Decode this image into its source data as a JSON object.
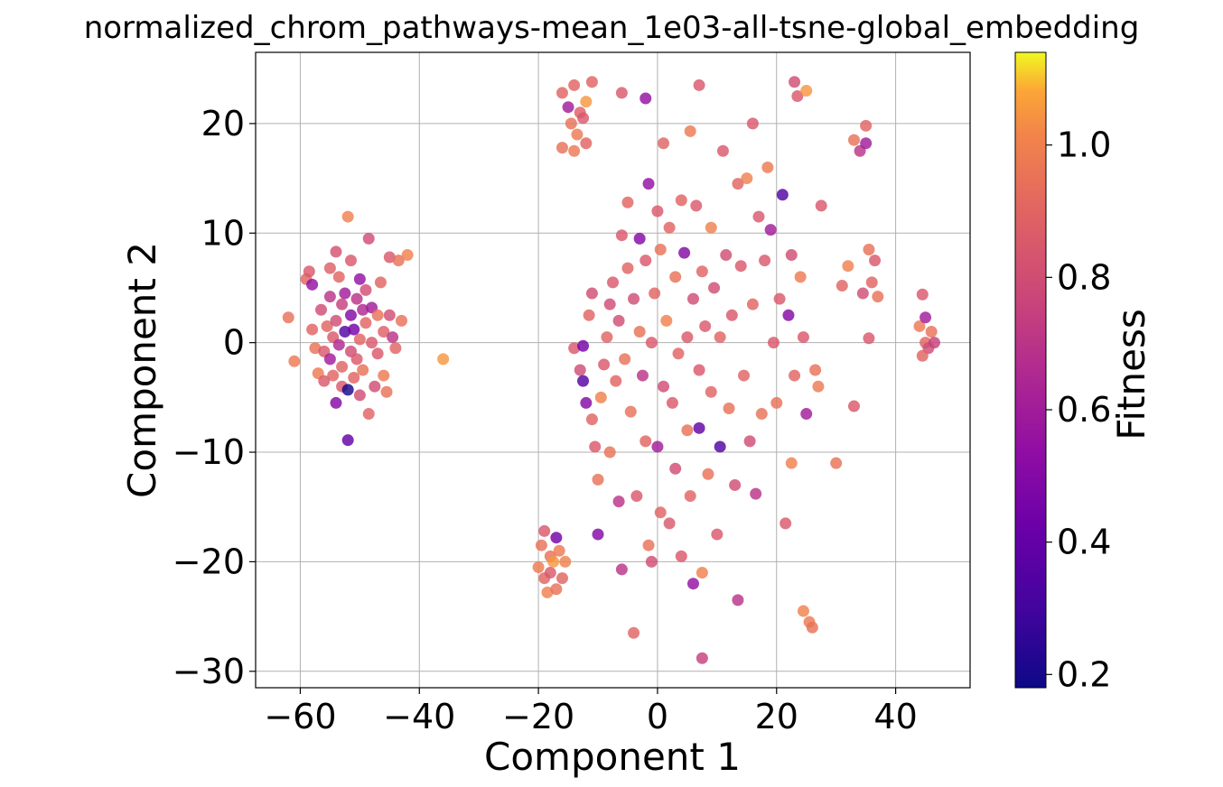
{
  "chart_data": {
    "type": "scatter",
    "title": "normalized_chrom_pathways-mean_1e03-all-tsne-global_embedding",
    "xlabel": "Component 1",
    "ylabel": "Component 2",
    "xlim": [
      -67.5,
      52.5
    ],
    "ylim": [
      -31.5,
      26.5
    ],
    "xticks": [
      -60,
      -40,
      -20,
      0,
      20,
      40
    ],
    "yticks": [
      -30,
      -20,
      -10,
      0,
      10,
      20
    ],
    "xtick_labels": [
      "−60",
      "−40",
      "−20",
      "0",
      "20",
      "40"
    ],
    "ytick_labels": [
      "−30",
      "−20",
      "−10",
      "0",
      "10",
      "20"
    ],
    "grid": true,
    "colorbar": {
      "label": "Fitness",
      "colormap": "plasma",
      "range": [
        0.18,
        1.14
      ],
      "ticks": [
        0.2,
        0.4,
        0.6,
        0.8,
        1.0
      ],
      "tick_labels": [
        "0.2",
        "0.4",
        "0.6",
        "0.8",
        "1.0"
      ]
    },
    "points": [
      [
        -62,
        2.3,
        0.95
      ],
      [
        -61,
        -1.7,
        0.98
      ],
      [
        -59,
        5.8,
        0.9
      ],
      [
        -58.5,
        6.5,
        0.85
      ],
      [
        -58,
        5.3,
        0.55
      ],
      [
        -58,
        1.2,
        0.9
      ],
      [
        -57.5,
        -0.5,
        0.95
      ],
      [
        -57,
        -2.8,
        0.98
      ],
      [
        -56.5,
        3.0,
        0.8
      ],
      [
        -56,
        -0.8,
        0.85
      ],
      [
        -56,
        -3.5,
        0.85
      ],
      [
        -55.5,
        1.5,
        0.9
      ],
      [
        -55,
        6.8,
        0.88
      ],
      [
        -55,
        4.2,
        0.7
      ],
      [
        -55,
        -1.5,
        0.6
      ],
      [
        -54.5,
        -3.0,
        0.9
      ],
      [
        -54.5,
        0.5,
        0.85
      ],
      [
        -54,
        8.3,
        0.82
      ],
      [
        -54,
        2.0,
        0.8
      ],
      [
        -54,
        -5.5,
        0.5
      ],
      [
        -53.5,
        -0.2,
        0.65
      ],
      [
        -53.5,
        6.0,
        0.9
      ],
      [
        -53,
        3.5,
        0.75
      ],
      [
        -53,
        -2.2,
        0.9
      ],
      [
        -53,
        -4.0,
        0.85
      ],
      [
        -52.5,
        1.0,
        0.35
      ],
      [
        -52.5,
        4.5,
        0.6
      ],
      [
        -52,
        11.5,
        1.0
      ],
      [
        -52,
        -4.3,
        0.2
      ],
      [
        -52,
        -8.9,
        0.4
      ],
      [
        -51.5,
        2.5,
        0.5
      ],
      [
        -51.5,
        -0.8,
        0.8
      ],
      [
        -51.5,
        7.5,
        0.85
      ],
      [
        -51,
        1.2,
        0.45
      ],
      [
        -51,
        -3.2,
        0.9
      ],
      [
        -50.5,
        4.0,
        0.7
      ],
      [
        -50.5,
        -1.5,
        0.85
      ],
      [
        -50,
        5.8,
        0.55
      ],
      [
        -50,
        0.3,
        0.9
      ],
      [
        -50,
        -4.8,
        0.8
      ],
      [
        -49.5,
        3.0,
        0.65
      ],
      [
        -49.5,
        -2.5,
        0.95
      ],
      [
        -49,
        4.8,
        0.8
      ],
      [
        -49,
        1.8,
        0.9
      ],
      [
        -48.5,
        -6.5,
        0.9
      ],
      [
        -48.5,
        9.5,
        0.8
      ],
      [
        -48,
        3.2,
        0.6
      ],
      [
        -48,
        0.0,
        0.85
      ],
      [
        -47.5,
        -4.0,
        0.8
      ],
      [
        -47,
        2.5,
        0.95
      ],
      [
        -47,
        -1.0,
        0.85
      ],
      [
        -46.5,
        5.5,
        0.9
      ],
      [
        -46,
        1.0,
        0.88
      ],
      [
        -46,
        -3.0,
        0.98
      ],
      [
        -45.5,
        -4.5,
        0.95
      ],
      [
        -45,
        7.8,
        0.85
      ],
      [
        -45,
        2.5,
        0.8
      ],
      [
        -44.5,
        0.5,
        0.7
      ],
      [
        -44,
        -0.5,
        0.9
      ],
      [
        -43.5,
        7.5,
        0.95
      ],
      [
        -43,
        2.0,
        0.95
      ],
      [
        -42,
        8.0,
        1.0
      ],
      [
        -36,
        -1.5,
        1.05
      ],
      [
        -20,
        -20.5,
        0.98
      ],
      [
        -19.5,
        -18.5,
        0.95
      ],
      [
        -19,
        -21.5,
        0.9
      ],
      [
        -19,
        -17.2,
        0.85
      ],
      [
        -18.5,
        -22.8,
        1.0
      ],
      [
        -18,
        -19.5,
        0.95
      ],
      [
        -18,
        -21.0,
        0.85
      ],
      [
        -17.5,
        -20.0,
        1.05
      ],
      [
        -17,
        -22.5,
        0.95
      ],
      [
        -17,
        -17.8,
        0.45
      ],
      [
        -16.5,
        -19.0,
        0.98
      ],
      [
        -16,
        -21.5,
        0.9
      ],
      [
        -15.5,
        -20.0,
        1.0
      ],
      [
        -16,
        22.8,
        0.9
      ],
      [
        -15,
        21.5,
        0.6
      ],
      [
        -14.5,
        20.0,
        0.95
      ],
      [
        -14,
        23.5,
        0.9
      ],
      [
        -13.5,
        19.0,
        0.98
      ],
      [
        -13,
        21.0,
        0.88
      ],
      [
        -12,
        22.0,
        1.05
      ],
      [
        -12,
        18.2,
        0.9
      ],
      [
        -11,
        23.8,
        0.9
      ],
      [
        -16,
        17.8,
        0.95
      ],
      [
        -14,
        17.5,
        0.98
      ],
      [
        -12.5,
        20.5,
        0.85
      ],
      [
        -6,
        22.8,
        0.85
      ],
      [
        -2,
        22.3,
        0.55
      ],
      [
        7,
        23.5,
        0.85
      ],
      [
        5.5,
        19.3,
        0.98
      ],
      [
        1,
        18.2,
        0.9
      ],
      [
        -14,
        -0.5,
        0.85
      ],
      [
        -13,
        -2.5,
        0.8
      ],
      [
        -12.5,
        -0.3,
        0.45
      ],
      [
        -12.5,
        -3.5,
        0.35
      ],
      [
        -12,
        -5.5,
        0.5
      ],
      [
        -11.5,
        2.5,
        0.9
      ],
      [
        -11,
        -7.0,
        0.9
      ],
      [
        -11,
        4.5,
        0.8
      ],
      [
        -10.5,
        -9.5,
        0.85
      ],
      [
        -10,
        -12.5,
        0.95
      ],
      [
        -10,
        -17.5,
        0.5
      ],
      [
        -9.5,
        -5.0,
        1.0
      ],
      [
        -9,
        -2.0,
        0.85
      ],
      [
        -8.5,
        0.5,
        0.9
      ],
      [
        -8,
        3.5,
        0.8
      ],
      [
        -8,
        -10.0,
        0.95
      ],
      [
        -7.5,
        5.5,
        0.85
      ],
      [
        -7,
        -3.5,
        0.9
      ],
      [
        -6.5,
        2.0,
        0.8
      ],
      [
        -6.5,
        -14.5,
        0.7
      ],
      [
        -6,
        -20.7,
        0.7
      ],
      [
        -6,
        9.8,
        0.85
      ],
      [
        -5.5,
        -1.5,
        0.95
      ],
      [
        -5,
        6.8,
        0.9
      ],
      [
        -5,
        12.8,
        0.9
      ],
      [
        -4.5,
        -6.3,
        0.95
      ],
      [
        -4,
        4.0,
        0.8
      ],
      [
        -4,
        -26.5,
        0.9
      ],
      [
        -3.5,
        -14.0,
        0.85
      ],
      [
        -3,
        1.0,
        0.95
      ],
      [
        -3,
        9.5,
        0.5
      ],
      [
        -2.5,
        -3.0,
        0.7
      ],
      [
        -2,
        -9.0,
        0.9
      ],
      [
        -2,
        7.5,
        0.85
      ],
      [
        -1.5,
        14.5,
        0.55
      ],
      [
        -1.5,
        -18.5,
        0.95
      ],
      [
        -1,
        -20.0,
        0.8
      ],
      [
        -1,
        0.0,
        0.85
      ],
      [
        -0.5,
        4.5,
        0.9
      ],
      [
        0,
        12.0,
        0.85
      ],
      [
        0,
        -9.5,
        0.6
      ],
      [
        0.5,
        8.5,
        0.95
      ],
      [
        0.5,
        -15.5,
        0.9
      ],
      [
        1,
        -4.0,
        0.8
      ],
      [
        1.5,
        2.0,
        1.0
      ],
      [
        2,
        -16.5,
        0.85
      ],
      [
        2,
        10.5,
        0.9
      ],
      [
        2.5,
        -5.5,
        0.85
      ],
      [
        3,
        6.0,
        0.95
      ],
      [
        3,
        -11.5,
        0.8
      ],
      [
        3.5,
        -1.0,
        0.9
      ],
      [
        4,
        13.0,
        0.9
      ],
      [
        4,
        -19.5,
        0.85
      ],
      [
        4.5,
        8.2,
        0.5
      ],
      [
        5,
        0.5,
        0.85
      ],
      [
        5,
        -8.0,
        0.95
      ],
      [
        5.5,
        -14.0,
        0.9
      ],
      [
        6,
        4.0,
        0.8
      ],
      [
        6,
        -22.0,
        0.55
      ],
      [
        6.5,
        12.5,
        0.85
      ],
      [
        7,
        -7.8,
        0.4
      ],
      [
        7,
        -2.5,
        0.85
      ],
      [
        7.5,
        6.5,
        0.9
      ],
      [
        7.5,
        -21.0,
        1.0
      ],
      [
        7.5,
        -28.8,
        0.75
      ],
      [
        8,
        1.5,
        0.85
      ],
      [
        8.5,
        -12.0,
        0.95
      ],
      [
        9,
        10.5,
        1.0
      ],
      [
        9,
        -4.5,
        0.9
      ],
      [
        9.5,
        5.0,
        0.8
      ],
      [
        10,
        -17.5,
        0.85
      ],
      [
        10.5,
        -9.5,
        0.35
      ],
      [
        10.5,
        0.5,
        0.9
      ],
      [
        11,
        17.5,
        0.85
      ],
      [
        11.5,
        8.0,
        0.8
      ],
      [
        12,
        -6.0,
        0.95
      ],
      [
        12.5,
        2.5,
        0.85
      ],
      [
        13,
        -13.0,
        0.8
      ],
      [
        13.5,
        -23.5,
        0.7
      ],
      [
        13.5,
        14.5,
        0.9
      ],
      [
        14,
        7.0,
        0.85
      ],
      [
        14.5,
        -3.0,
        0.9
      ],
      [
        15,
        15.0,
        1.0
      ],
      [
        15.5,
        -9.0,
        0.8
      ],
      [
        16,
        20.0,
        0.85
      ],
      [
        16,
        3.5,
        0.9
      ],
      [
        16.5,
        -13.8,
        0.7
      ],
      [
        17,
        11.5,
        0.85
      ],
      [
        17.5,
        -6.5,
        0.95
      ],
      [
        18,
        7.5,
        0.85
      ],
      [
        18.5,
        16.0,
        0.98
      ],
      [
        19,
        10.3,
        0.6
      ],
      [
        19.5,
        0.0,
        0.85
      ],
      [
        20,
        -5.5,
        0.95
      ],
      [
        20.5,
        4.0,
        0.85
      ],
      [
        21,
        13.5,
        0.35
      ],
      [
        21.5,
        -16.5,
        0.85
      ],
      [
        22,
        2.5,
        0.5
      ],
      [
        22.5,
        -11.0,
        1.0
      ],
      [
        22.5,
        8.0,
        0.8
      ],
      [
        23,
        23.8,
        0.8
      ],
      [
        23,
        -3.0,
        0.9
      ],
      [
        23.5,
        22.5,
        0.85
      ],
      [
        24,
        6.0,
        0.98
      ],
      [
        24.5,
        0.5,
        0.85
      ],
      [
        25,
        -6.5,
        0.6
      ],
      [
        25,
        23.0,
        1.05
      ],
      [
        25.5,
        -25.5,
        0.98
      ],
      [
        24.5,
        -24.5,
        1.0
      ],
      [
        26,
        -26.0,
        0.95
      ],
      [
        26.5,
        -2.5,
        0.95
      ],
      [
        27,
        -4.0,
        0.98
      ],
      [
        27.5,
        12.5,
        0.85
      ],
      [
        30,
        -11.0,
        0.95
      ],
      [
        31,
        5.2,
        0.9
      ],
      [
        32,
        7.0,
        1.0
      ],
      [
        33,
        -5.8,
        0.85
      ],
      [
        33,
        18.5,
        0.95
      ],
      [
        34,
        17.5,
        0.7
      ],
      [
        34.5,
        4.5,
        0.8
      ],
      [
        35,
        19.8,
        0.9
      ],
      [
        35,
        18.2,
        0.6
      ],
      [
        35.5,
        8.5,
        0.95
      ],
      [
        35.5,
        0.4,
        0.85
      ],
      [
        36,
        5.5,
        0.9
      ],
      [
        36.5,
        7.5,
        0.85
      ],
      [
        37,
        4.2,
        0.95
      ],
      [
        44,
        1.5,
        0.98
      ],
      [
        44.5,
        4.4,
        0.85
      ],
      [
        45,
        2.3,
        0.6
      ],
      [
        45,
        0.0,
        0.9
      ],
      [
        45.5,
        -0.5,
        0.8
      ],
      [
        46,
        1.0,
        0.95
      ],
      [
        46.5,
        0.0,
        0.75
      ],
      [
        44.5,
        -1.2,
        0.9
      ]
    ]
  }
}
